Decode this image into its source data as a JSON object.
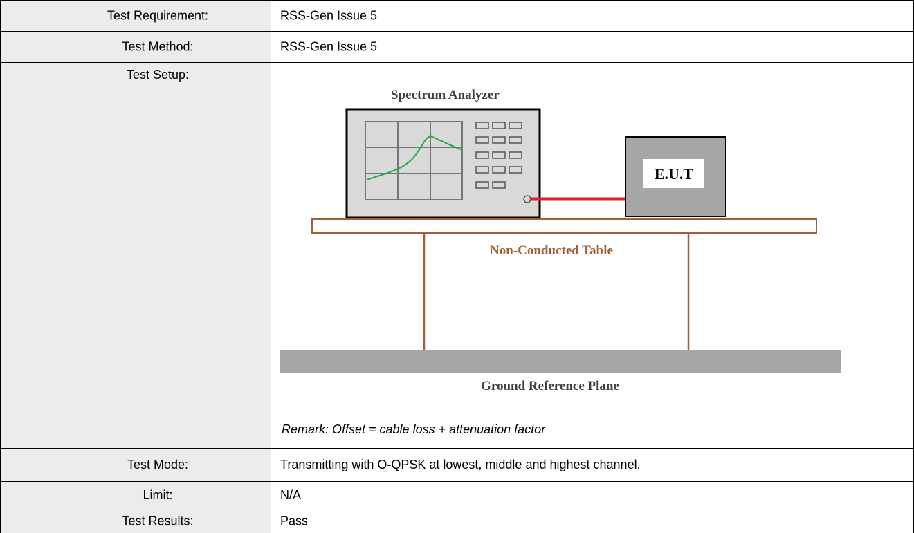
{
  "table": {
    "rows": [
      [
        "Test Requirement:",
        "RSS-Gen Issue 5"
      ],
      [
        "Test Method:",
        "RSS-Gen Issue 5"
      ],
      [
        "Test Setup:",
        ""
      ],
      [
        "Test Mode:",
        "Transmitting with O-QPSK at lowest, middle and highest channel."
      ],
      [
        "Limit:",
        "N/A"
      ],
      [
        "Test Results:",
        "Pass"
      ]
    ]
  },
  "diagram": {
    "analyzer": "Spectrum Analyzer",
    "eut": "E.U.T",
    "table": "Non-Conducted Table",
    "ground": "Ground Reference Plane",
    "remark": "Remark: Offset = cable loss + attenuation factor"
  }
}
